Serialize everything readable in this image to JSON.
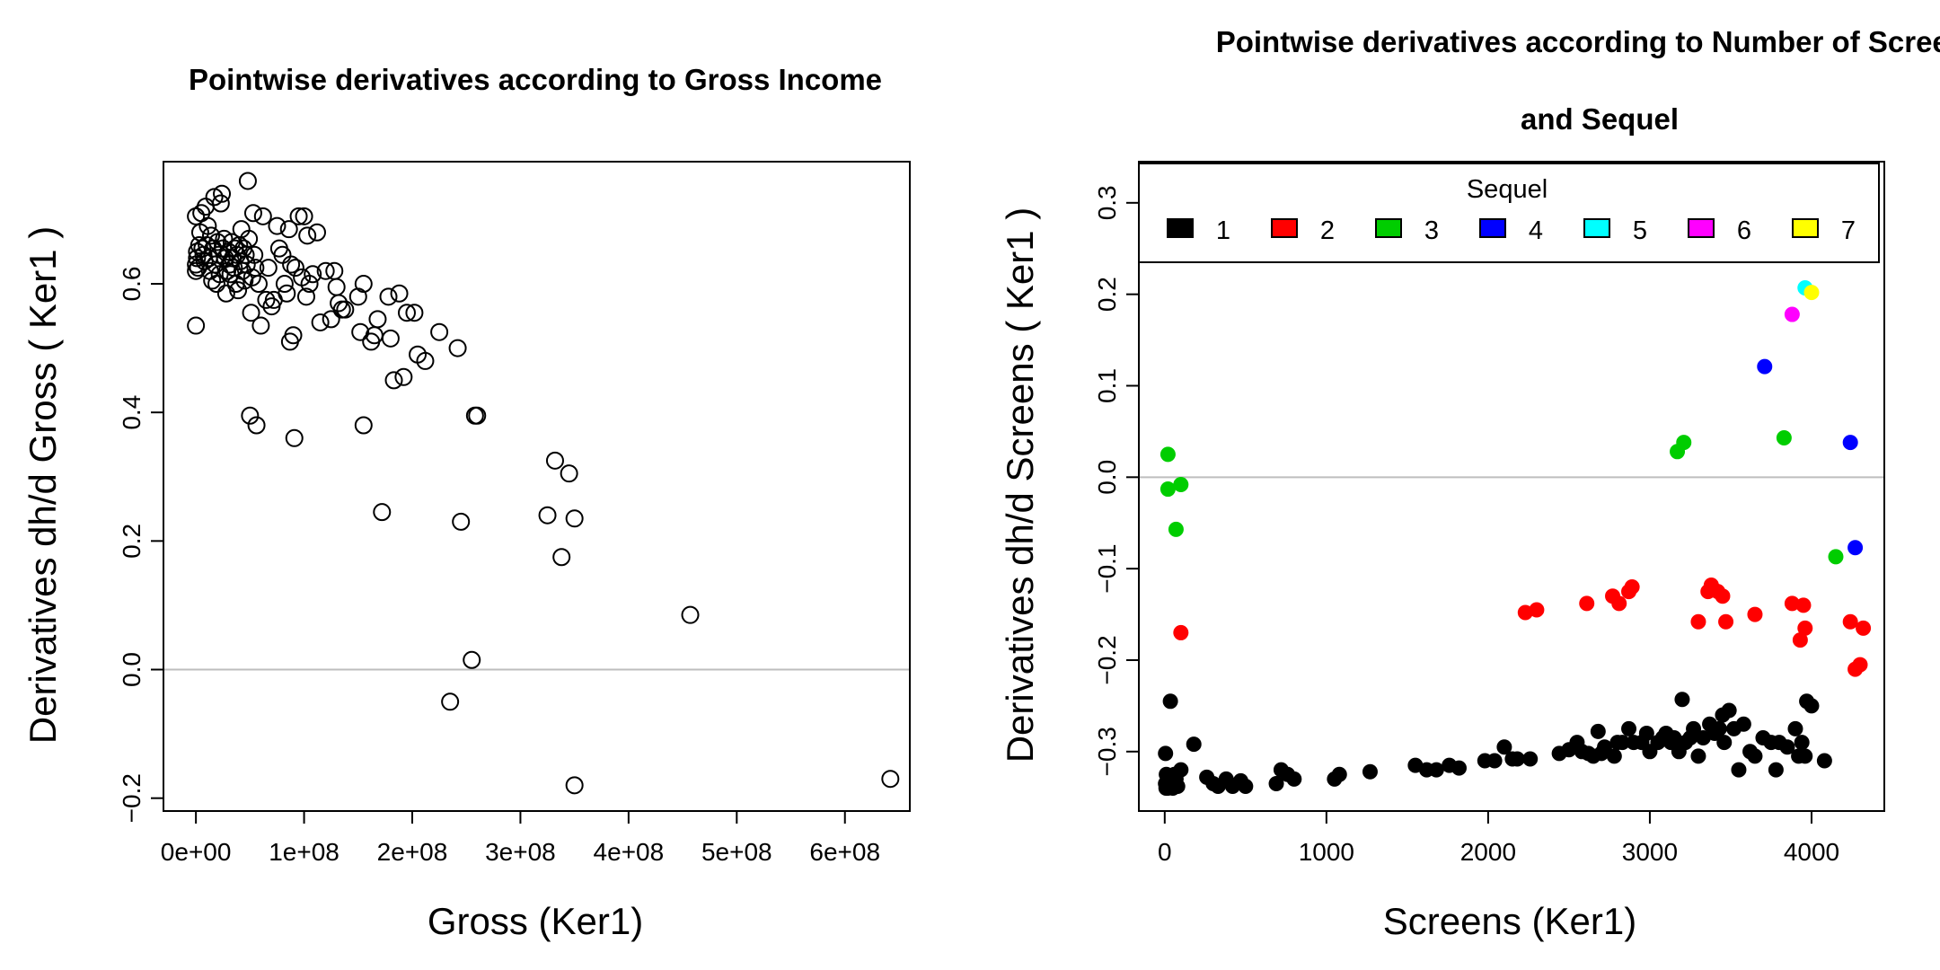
{
  "chart_data": [
    {
      "type": "scatter",
      "title": "Pointwise derivatives according to Gross Income",
      "xlabel": "Gross (Ker1)",
      "ylabel": "Derivatives dh/d Gross  ( Ker1 )",
      "xlim": [
        -30000000.0,
        660000000.0
      ],
      "ylim": [
        -0.22,
        0.79
      ],
      "xticks": [
        0,
        100000000,
        200000000,
        300000000,
        400000000,
        500000000,
        600000000
      ],
      "xtick_labels": [
        "0e+00",
        "1e+08",
        "2e+08",
        "3e+08",
        "4e+08",
        "5e+08",
        "6e+08"
      ],
      "yticks": [
        -0.2,
        0.0,
        0.2,
        0.4,
        0.6
      ],
      "ytick_labels": [
        "−0.2",
        "0.0",
        "0.2",
        "0.4",
        "0.6"
      ],
      "reference_line": 0,
      "grid": false,
      "marker": "open-circle",
      "points": [
        [
          0,
          0.535
        ],
        [
          0,
          0.705
        ],
        [
          0,
          0.62
        ],
        [
          0,
          0.63
        ],
        [
          1000000.0,
          0.64
        ],
        [
          1000000.0,
          0.65
        ],
        [
          2000000.0,
          0.625
        ],
        [
          3000000.0,
          0.66
        ],
        [
          4000000.0,
          0.68
        ],
        [
          5000000.0,
          0.71
        ],
        [
          6000000.0,
          0.655
        ],
        [
          7000000.0,
          0.645
        ],
        [
          8000000.0,
          0.635
        ],
        [
          9000000.0,
          0.72
        ],
        [
          10000000.0,
          0.66
        ],
        [
          11000000.0,
          0.69
        ],
        [
          12000000.0,
          0.64
        ],
        [
          13000000.0,
          0.62
        ],
        [
          14000000.0,
          0.675
        ],
        [
          15000000.0,
          0.605
        ],
        [
          16000000.0,
          0.655
        ],
        [
          17000000.0,
          0.735
        ],
        [
          18000000.0,
          0.63
        ],
        [
          19000000.0,
          0.6
        ],
        [
          20000000.0,
          0.665
        ],
        [
          21000000.0,
          0.645
        ],
        [
          22000000.0,
          0.615
        ],
        [
          23000000.0,
          0.725
        ],
        [
          24000000.0,
          0.74
        ],
        [
          25000000.0,
          0.655
        ],
        [
          26000000.0,
          0.67
        ],
        [
          27000000.0,
          0.64
        ],
        [
          28000000.0,
          0.585
        ],
        [
          29000000.0,
          0.62
        ],
        [
          30000000.0,
          0.65
        ],
        [
          31000000.0,
          0.63
        ],
        [
          32000000.0,
          0.615
        ],
        [
          33000000.0,
          0.665
        ],
        [
          34000000.0,
          0.64
        ],
        [
          35000000.0,
          0.625
        ],
        [
          36000000.0,
          0.655
        ],
        [
          37000000.0,
          0.6
        ],
        [
          38000000.0,
          0.645
        ],
        [
          39000000.0,
          0.59
        ],
        [
          40000000.0,
          0.66
        ],
        [
          41000000.0,
          0.635
        ],
        [
          42000000.0,
          0.685
        ],
        [
          43000000.0,
          0.62
        ],
        [
          44000000.0,
          0.655
        ],
        [
          45000000.0,
          0.605
        ],
        [
          46000000.0,
          0.645
        ],
        [
          47000000.0,
          0.63
        ],
        [
          48000000.0,
          0.76
        ],
        [
          49000000.0,
          0.67
        ],
        [
          50000000.0,
          0.395
        ],
        [
          51000000.0,
          0.555
        ],
        [
          52000000.0,
          0.61
        ],
        [
          53000000.0,
          0.71
        ],
        [
          54000000.0,
          0.645
        ],
        [
          55000000.0,
          0.625
        ],
        [
          56000000.0,
          0.38
        ],
        [
          58000000.0,
          0.6
        ],
        [
          60000000.0,
          0.535
        ],
        [
          62000000.0,
          0.705
        ],
        [
          65000000.0,
          0.575
        ],
        [
          67000000.0,
          0.625
        ],
        [
          70000000.0,
          0.565
        ],
        [
          72000000.0,
          0.575
        ],
        [
          75000000.0,
          0.69
        ],
        [
          77000000.0,
          0.655
        ],
        [
          80000000.0,
          0.645
        ],
        [
          82000000.0,
          0.6
        ],
        [
          84000000.0,
          0.585
        ],
        [
          86000000.0,
          0.685
        ],
        [
          87000000.0,
          0.51
        ],
        [
          88000000.0,
          0.63
        ],
        [
          90000000.0,
          0.52
        ],
        [
          91000000.0,
          0.36
        ],
        [
          92000000.0,
          0.625
        ],
        [
          95000000.0,
          0.705
        ],
        [
          98000000.0,
          0.61
        ],
        [
          100000000.0,
          0.705
        ],
        [
          102000000.0,
          0.58
        ],
        [
          103000000.0,
          0.675
        ],
        [
          105000000.0,
          0.6
        ],
        [
          108000000.0,
          0.615
        ],
        [
          112000000.0,
          0.68
        ],
        [
          115000000.0,
          0.54
        ],
        [
          120000000.0,
          0.62
        ],
        [
          125000000.0,
          0.545
        ],
        [
          128000000.0,
          0.62
        ],
        [
          130000000.0,
          0.595
        ],
        [
          132000000.0,
          0.57
        ],
        [
          135000000.0,
          0.56
        ],
        [
          138000000.0,
          0.56
        ],
        [
          150000000.0,
          0.58
        ],
        [
          152000000.0,
          0.525
        ],
        [
          155000000.0,
          0.6
        ],
        [
          155000000.0,
          0.38
        ],
        [
          162000000.0,
          0.51
        ],
        [
          165000000.0,
          0.52
        ],
        [
          168000000.0,
          0.545
        ],
        [
          172000000.0,
          0.245
        ],
        [
          178000000.0,
          0.58
        ],
        [
          180000000.0,
          0.515
        ],
        [
          183000000.0,
          0.45
        ],
        [
          188000000.0,
          0.585
        ],
        [
          192000000.0,
          0.455
        ],
        [
          195000000.0,
          0.555
        ],
        [
          202000000.0,
          0.555
        ],
        [
          205000000.0,
          0.49
        ],
        [
          212000000.0,
          0.48
        ],
        [
          225000000.0,
          0.525
        ],
        [
          235000000.0,
          -0.05
        ],
        [
          242000000.0,
          0.5
        ],
        [
          245000000.0,
          0.23
        ],
        [
          255000000.0,
          0.015
        ],
        [
          258000000.0,
          0.395
        ],
        [
          260000000.0,
          0.395
        ],
        [
          325000000.0,
          0.24
        ],
        [
          332000000.0,
          0.325
        ],
        [
          338000000.0,
          0.175
        ],
        [
          345000000.0,
          0.305
        ],
        [
          350000000.0,
          -0.18
        ],
        [
          350000000.0,
          0.235
        ],
        [
          457000000.0,
          0.085
        ],
        [
          642000000.0,
          -0.17
        ]
      ]
    },
    {
      "type": "scatter",
      "title": "Pointwise derivatives according to Number of Screens",
      "subtitle": "and Sequel",
      "xlabel": "Screens (Ker1)",
      "ylabel": "Derivatives dh/d Screens  ( Ker1 )",
      "xlim": [
        -160,
        4450
      ],
      "ylim": [
        -0.365,
        0.345
      ],
      "xticks": [
        0,
        1000,
        2000,
        3000,
        4000
      ],
      "xtick_labels": [
        "0",
        "1000",
        "2000",
        "3000",
        "4000"
      ],
      "yticks": [
        -0.3,
        -0.2,
        -0.1,
        0.0,
        0.1,
        0.2,
        0.3
      ],
      "ytick_labels": [
        "−0.3",
        "−0.2",
        "−0.1",
        "0.0",
        "0.1",
        "0.2",
        "0.3"
      ],
      "reference_line": 0,
      "grid": false,
      "marker": "filled-circle",
      "legend": {
        "title": "Sequel",
        "position": "top",
        "entries": [
          {
            "label": "1",
            "color": "#000000"
          },
          {
            "label": "2",
            "color": "#ff0000"
          },
          {
            "label": "3",
            "color": "#00cd00"
          },
          {
            "label": "4",
            "color": "#0000ff"
          },
          {
            "label": "5",
            "color": "#00ffff"
          },
          {
            "label": "6",
            "color": "#ff00ff"
          },
          {
            "label": "7",
            "color": "#ffff00"
          }
        ]
      },
      "series": [
        {
          "name": "1",
          "color": "#000000",
          "points": [
            [
              5,
              -0.302
            ],
            [
              5,
              -0.335
            ],
            [
              8,
              -0.34
            ],
            [
              10,
              -0.325
            ],
            [
              20,
              -0.34
            ],
            [
              30,
              -0.33
            ],
            [
              35,
              -0.245
            ],
            [
              40,
              -0.335
            ],
            [
              50,
              -0.34
            ],
            [
              60,
              -0.325
            ],
            [
              70,
              -0.33
            ],
            [
              80,
              -0.338
            ],
            [
              100,
              -0.32
            ],
            [
              180,
              -0.292
            ],
            [
              260,
              -0.328
            ],
            [
              300,
              -0.335
            ],
            [
              330,
              -0.338
            ],
            [
              380,
              -0.33
            ],
            [
              420,
              -0.338
            ],
            [
              470,
              -0.332
            ],
            [
              500,
              -0.338
            ],
            [
              690,
              -0.335
            ],
            [
              720,
              -0.32
            ],
            [
              760,
              -0.325
            ],
            [
              800,
              -0.33
            ],
            [
              1050,
              -0.33
            ],
            [
              1080,
              -0.325
            ],
            [
              1270,
              -0.322
            ],
            [
              1550,
              -0.315
            ],
            [
              1620,
              -0.32
            ],
            [
              1680,
              -0.32
            ],
            [
              1760,
              -0.315
            ],
            [
              1820,
              -0.318
            ],
            [
              1980,
              -0.31
            ],
            [
              2040,
              -0.31
            ],
            [
              2100,
              -0.295
            ],
            [
              2150,
              -0.308
            ],
            [
              2180,
              -0.308
            ],
            [
              2260,
              -0.308
            ],
            [
              2440,
              -0.302
            ],
            [
              2500,
              -0.298
            ],
            [
              2550,
              -0.29
            ],
            [
              2580,
              -0.3
            ],
            [
              2620,
              -0.302
            ],
            [
              2650,
              -0.305
            ],
            [
              2680,
              -0.278
            ],
            [
              2700,
              -0.302
            ],
            [
              2720,
              -0.295
            ],
            [
              2780,
              -0.305
            ],
            [
              2800,
              -0.29
            ],
            [
              2830,
              -0.29
            ],
            [
              2870,
              -0.275
            ],
            [
              2900,
              -0.29
            ],
            [
              2950,
              -0.29
            ],
            [
              2980,
              -0.28
            ],
            [
              3000,
              -0.3
            ],
            [
              3050,
              -0.29
            ],
            [
              3080,
              -0.285
            ],
            [
              3100,
              -0.28
            ],
            [
              3130,
              -0.29
            ],
            [
              3150,
              -0.285
            ],
            [
              3180,
              -0.3
            ],
            [
              3200,
              -0.243
            ],
            [
              3220,
              -0.29
            ],
            [
              3250,
              -0.285
            ],
            [
              3270,
              -0.275
            ],
            [
              3300,
              -0.305
            ],
            [
              3330,
              -0.285
            ],
            [
              3370,
              -0.27
            ],
            [
              3400,
              -0.28
            ],
            [
              3430,
              -0.275
            ],
            [
              3450,
              -0.26
            ],
            [
              3460,
              -0.29
            ],
            [
              3490,
              -0.255
            ],
            [
              3520,
              -0.275
            ],
            [
              3550,
              -0.32
            ],
            [
              3580,
              -0.27
            ],
            [
              3620,
              -0.3
            ],
            [
              3650,
              -0.305
            ],
            [
              3700,
              -0.285
            ],
            [
              3750,
              -0.29
            ],
            [
              3780,
              -0.32
            ],
            [
              3800,
              -0.29
            ],
            [
              3850,
              -0.295
            ],
            [
              3900,
              -0.275
            ],
            [
              3920,
              -0.305
            ],
            [
              3940,
              -0.29
            ],
            [
              3960,
              -0.305
            ],
            [
              3970,
              -0.245
            ],
            [
              4000,
              -0.25
            ],
            [
              4080,
              -0.31
            ]
          ]
        },
        {
          "name": "2",
          "color": "#ff0000",
          "points": [
            [
              100,
              -0.17
            ],
            [
              2230,
              -0.148
            ],
            [
              2300,
              -0.145
            ],
            [
              2610,
              -0.138
            ],
            [
              2770,
              -0.13
            ],
            [
              2810,
              -0.138
            ],
            [
              2870,
              -0.125
            ],
            [
              2890,
              -0.12
            ],
            [
              3300,
              -0.158
            ],
            [
              3360,
              -0.125
            ],
            [
              3380,
              -0.118
            ],
            [
              3420,
              -0.125
            ],
            [
              3450,
              -0.13
            ],
            [
              3470,
              -0.158
            ],
            [
              3650,
              -0.15
            ],
            [
              3880,
              -0.138
            ],
            [
              3930,
              -0.178
            ],
            [
              3950,
              -0.14
            ],
            [
              3960,
              -0.165
            ],
            [
              4240,
              -0.158
            ],
            [
              4270,
              -0.21
            ],
            [
              4300,
              -0.205
            ],
            [
              4320,
              -0.165
            ]
          ]
        },
        {
          "name": "3",
          "color": "#00cd00",
          "points": [
            [
              20,
              0.025
            ],
            [
              20,
              -0.013
            ],
            [
              70,
              -0.057
            ],
            [
              100,
              -0.008
            ],
            [
              3170,
              0.028
            ],
            [
              3210,
              0.038
            ],
            [
              3830,
              0.043
            ],
            [
              4150,
              -0.087
            ]
          ]
        },
        {
          "name": "4",
          "color": "#0000ff",
          "points": [
            [
              3710,
              0.121
            ],
            [
              4240,
              0.038
            ],
            [
              4270,
              -0.077
            ]
          ]
        },
        {
          "name": "5",
          "color": "#00ffff",
          "points": [
            [
              3960,
              0.207
            ]
          ]
        },
        {
          "name": "6",
          "color": "#ff00ff",
          "points": [
            [
              3880,
              0.178
            ]
          ]
        },
        {
          "name": "7",
          "color": "#ffff00",
          "points": [
            [
              4000,
              0.202
            ]
          ]
        }
      ]
    }
  ]
}
